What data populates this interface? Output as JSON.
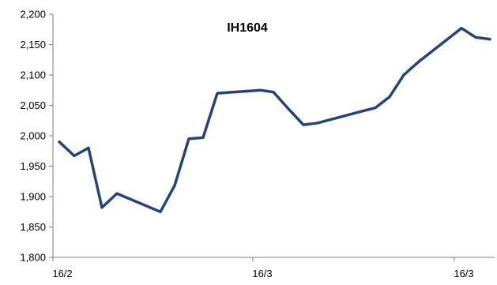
{
  "colors": {
    "line": "#264478",
    "axis": "#7f7f7f",
    "background": "#ffffff"
  },
  "chart_data": {
    "type": "line",
    "title": "IH1604",
    "xlabel": "",
    "ylabel": "",
    "ylim": [
      1800,
      2200
    ],
    "y_ticks": [
      1800,
      1850,
      1900,
      1950,
      2000,
      2050,
      2100,
      2150,
      2200
    ],
    "y_tick_labels": [
      "1,800",
      "1,850",
      "1,900",
      "1,950",
      "2,000",
      "2,050",
      "2,100",
      "2,150",
      "2,200"
    ],
    "x_tick_labels": [
      "16/2",
      "16/3",
      "16/3"
    ],
    "grid": false,
    "legend": "none",
    "series": [
      {
        "values": [
          1990,
          1967,
          1980,
          1882,
          1905,
          1875,
          1918,
          1995,
          1997,
          2070,
          2075,
          2072,
          2043,
          2018,
          2021,
          2040,
          2046,
          2064,
          2100,
          2122,
          2177,
          2162,
          2159
        ]
      }
    ]
  }
}
